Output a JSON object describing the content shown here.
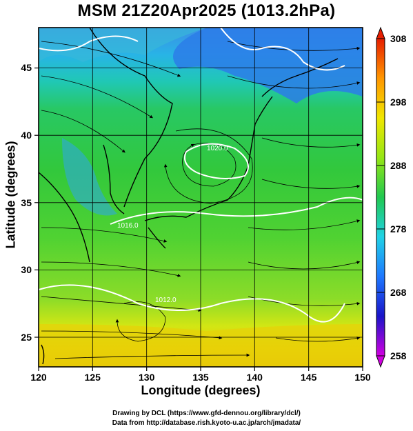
{
  "title": "MSM 21Z20Apr2025 (1013.2hPa)",
  "xlabel": "Longitude (degrees)",
  "ylabel": "Latitude  (degrees)",
  "credits": [
    "Drawing by DCL (https://www.gfd-dennou.org/library/dcl/)",
    "Data from http://database.rish.kyoto-u.ac.jp/arch/jmadata/"
  ],
  "map": {
    "lon_range": [
      120,
      150
    ],
    "lat_range": [
      22.4,
      47.6
    ],
    "lon_ticks": [
      "120",
      "125",
      "130",
      "135",
      "140",
      "145",
      "150"
    ],
    "lat_ticks": [
      "25",
      "30",
      "35",
      "40",
      "45"
    ],
    "grid": true,
    "field": "temperature (K), colour shading",
    "overlays": [
      "streamlines (black)",
      "isobars (white)",
      "coastlines (black)"
    ]
  },
  "colorbar": {
    "range": [
      258,
      308
    ],
    "tick_labels": [
      "308",
      "298",
      "288",
      "278",
      "268",
      "258"
    ],
    "colors": [
      "#d000e0",
      "#1a14c8",
      "#1e78ff",
      "#20d2e6",
      "#20c850",
      "#96e614",
      "#f0e600",
      "#ff9600",
      "#e61e00"
    ]
  },
  "isobars": [
    {
      "label": "1020.0"
    },
    {
      "label": "1016.0"
    },
    {
      "label": "1012.0"
    }
  ]
}
